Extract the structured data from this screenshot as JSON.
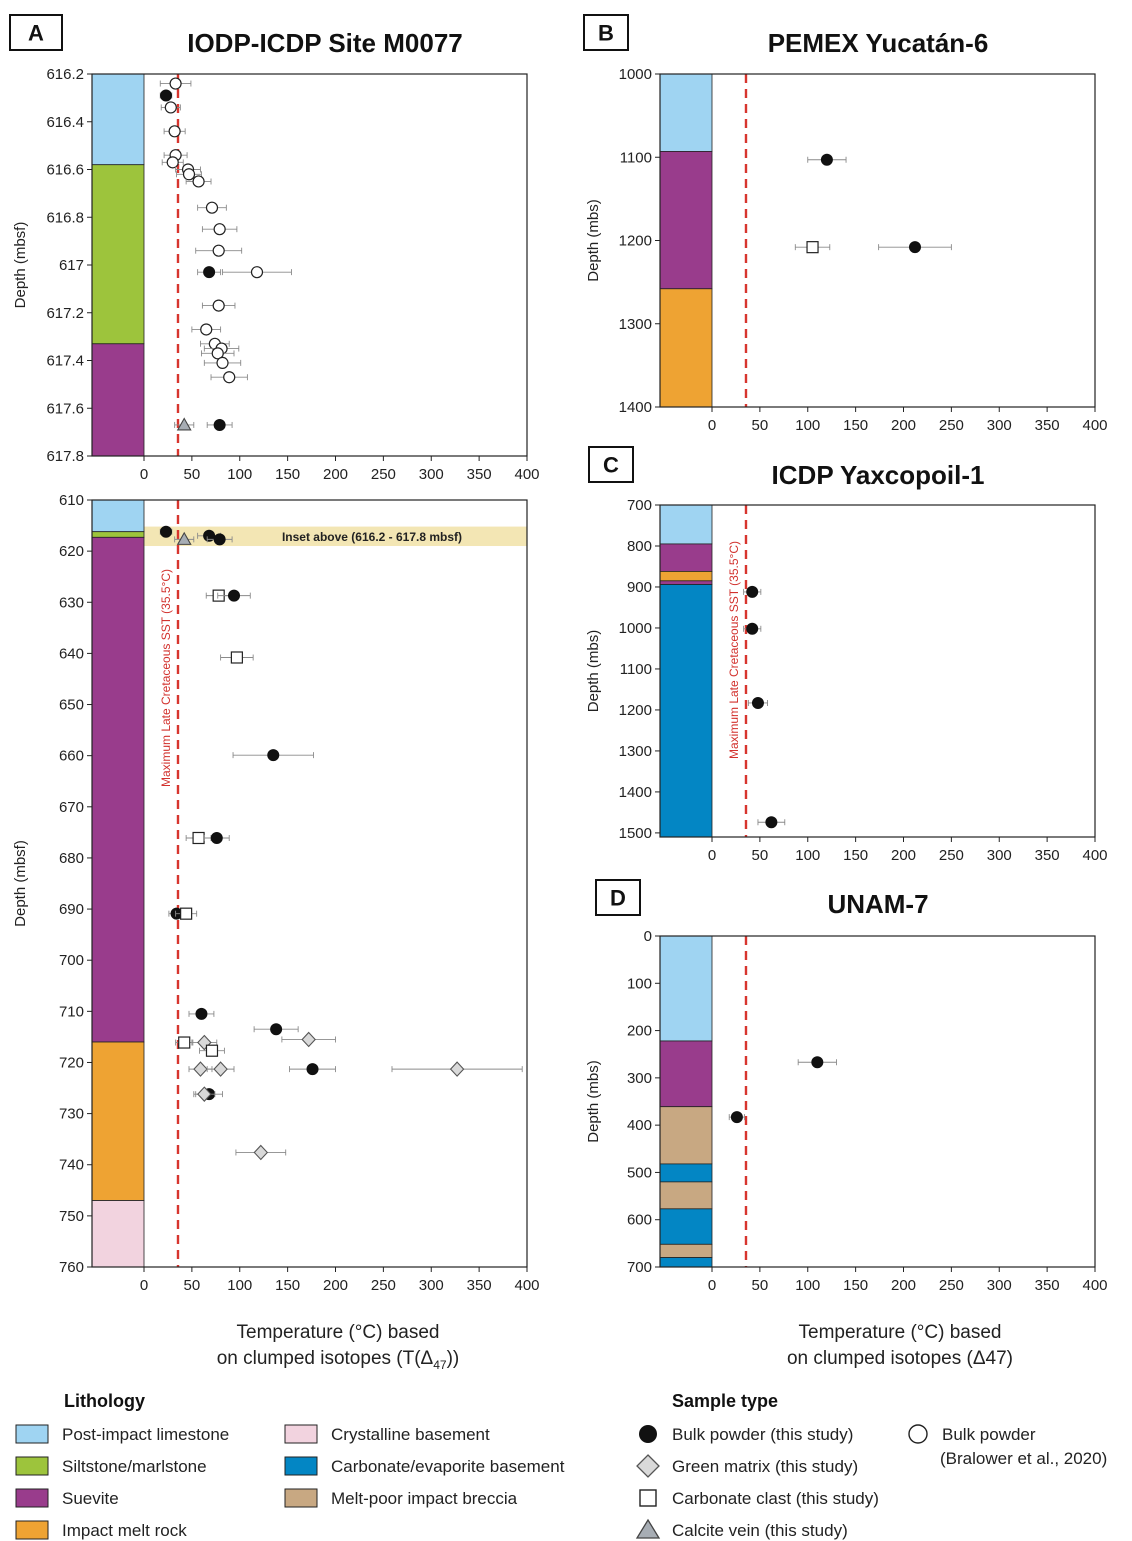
{
  "sst_label": "Maximum Late Cretaceous SST (35.5°C)",
  "sst_value": 35.5,
  "colors": {
    "post_impact_limestone": "#9fd4f2",
    "siltstone": "#9dc43c",
    "suevite": "#993c8c",
    "impact_melt": "#eea333",
    "crystalline": "#f2d3df",
    "carbonate_basement": "#0386c4",
    "melt_poor": "#c8a882",
    "sst_line": "#d7352e",
    "inset_band": "#f3e6b4"
  },
  "x_axis": {
    "label_A_line1": "Temperature (°C) based",
    "label_A_line2": "on clumped isotopes (T(Δ",
    "label_A_sub": "47",
    "label_A_end": "))",
    "label_D_line1": "Temperature (°C) based",
    "label_D_line2": "on clumped isotopes (Δ47)"
  },
  "chart_data": [
    {
      "id": "A-top",
      "type": "scatter",
      "letter": "A",
      "title": "IODP-ICDP Site M0077",
      "ylabel": "Depth (mbsf)",
      "xlim": [
        0,
        400
      ],
      "ylim": [
        617.8,
        616.2
      ],
      "xticks": [
        0,
        50,
        100,
        150,
        200,
        250,
        300,
        350,
        400
      ],
      "yticks": [
        616.2,
        616.4,
        616.6,
        616.8,
        617,
        617.2,
        617.4,
        617.6,
        617.8
      ],
      "ytick_labels": [
        "616.2",
        "616.4",
        "616.6",
        "616.8",
        "617",
        "617.2",
        "617.4",
        "617.6",
        "617.8"
      ],
      "lithology": [
        {
          "unit": "post_impact_limestone",
          "top": 616.2,
          "bottom": 616.58
        },
        {
          "unit": "siltstone",
          "top": 616.58,
          "bottom": 617.33
        },
        {
          "unit": "suevite",
          "top": 617.33,
          "bottom": 617.8
        }
      ],
      "points": [
        {
          "type": "bulk_bralower",
          "x": 33,
          "y": 616.24,
          "xerr": 16
        },
        {
          "type": "bulk",
          "x": 23,
          "y": 616.29,
          "xerr": 6
        },
        {
          "type": "bulk_bralower",
          "x": 28,
          "y": 616.34,
          "xerr": 10
        },
        {
          "type": "bulk_bralower",
          "x": 32,
          "y": 616.44,
          "xerr": 11
        },
        {
          "type": "bulk_bralower",
          "x": 33,
          "y": 616.54,
          "xerr": 12
        },
        {
          "type": "bulk_bralower",
          "x": 30,
          "y": 616.57,
          "xerr": 11
        },
        {
          "type": "bulk_bralower",
          "x": 46,
          "y": 616.6,
          "xerr": 13
        },
        {
          "type": "bulk_bralower",
          "x": 47,
          "y": 616.62,
          "xerr": 13
        },
        {
          "type": "bulk_bralower",
          "x": 57,
          "y": 616.65,
          "xerr": 13
        },
        {
          "type": "bulk_bralower",
          "x": 71,
          "y": 616.76,
          "xerr": 15
        },
        {
          "type": "bulk_bralower",
          "x": 79,
          "y": 616.85,
          "xerr": 18
        },
        {
          "type": "bulk_bralower",
          "x": 78,
          "y": 616.94,
          "xerr": 24
        },
        {
          "type": "bulk",
          "x": 68,
          "y": 617.03,
          "xerr": 12
        },
        {
          "type": "bulk_bralower",
          "x": 118,
          "y": 617.03,
          "xerr": 36
        },
        {
          "type": "bulk_bralower",
          "x": 78,
          "y": 617.17,
          "xerr": 17
        },
        {
          "type": "bulk_bralower",
          "x": 65,
          "y": 617.27,
          "xerr": 15
        },
        {
          "type": "bulk_bralower",
          "x": 74,
          "y": 617.33,
          "xerr": 15
        },
        {
          "type": "bulk_bralower",
          "x": 81,
          "y": 617.35,
          "xerr": 18
        },
        {
          "type": "bulk_bralower",
          "x": 77,
          "y": 617.37,
          "xerr": 17
        },
        {
          "type": "bulk_bralower",
          "x": 82,
          "y": 617.41,
          "xerr": 19
        },
        {
          "type": "bulk_bralower",
          "x": 89,
          "y": 617.47,
          "xerr": 19
        },
        {
          "type": "vein",
          "x": 42,
          "y": 617.67,
          "xerr": 10
        },
        {
          "type": "bulk",
          "x": 79,
          "y": 617.67,
          "xerr": 13
        }
      ]
    },
    {
      "id": "A-bottom",
      "type": "scatter",
      "letter": "",
      "title": "",
      "ylabel": "Depth (mbsf)",
      "xlim": [
        0,
        400
      ],
      "ylim": [
        760,
        610
      ],
      "xticks": [
        0,
        50,
        100,
        150,
        200,
        250,
        300,
        350,
        400
      ],
      "yticks": [
        610,
        620,
        630,
        640,
        650,
        660,
        670,
        680,
        690,
        700,
        710,
        720,
        730,
        740,
        750,
        760
      ],
      "ytick_labels": [
        "610",
        "620",
        "630",
        "640",
        "650",
        "660",
        "670",
        "680",
        "690",
        "700",
        "710",
        "720",
        "730",
        "740",
        "750",
        "760"
      ],
      "inset_band": {
        "top": 615.2,
        "bottom": 619,
        "label": "Inset above (616.2 - 617.8 mbsf)"
      },
      "show_sst_label": true,
      "lithology": [
        {
          "unit": "post_impact_limestone",
          "top": 610,
          "bottom": 616.2
        },
        {
          "unit": "siltstone",
          "top": 616.2,
          "bottom": 617.3
        },
        {
          "unit": "suevite",
          "top": 617.3,
          "bottom": 716
        },
        {
          "unit": "impact_melt",
          "top": 716,
          "bottom": 747
        },
        {
          "unit": "crystalline",
          "top": 747,
          "bottom": 760
        }
      ],
      "points": [
        {
          "type": "bulk",
          "x": 23,
          "y": 616.2,
          "xerr": 6
        },
        {
          "type": "bulk",
          "x": 68,
          "y": 617,
          "xerr": 12
        },
        {
          "type": "vein",
          "x": 42,
          "y": 617.7,
          "xerr": 10
        },
        {
          "type": "bulk",
          "x": 79,
          "y": 617.7,
          "xerr": 13
        },
        {
          "type": "clast",
          "x": 78,
          "y": 628.7,
          "xerr": 13
        },
        {
          "type": "bulk",
          "x": 94,
          "y": 628.7,
          "xerr": 17
        },
        {
          "type": "clast",
          "x": 97,
          "y": 640.8,
          "xerr": 17
        },
        {
          "type": "bulk",
          "x": 135,
          "y": 659.9,
          "xerr": 42
        },
        {
          "type": "clast",
          "x": 57,
          "y": 676.1,
          "xerr": 13
        },
        {
          "type": "bulk",
          "x": 76,
          "y": 676.1,
          "xerr": 13
        },
        {
          "type": "bulk",
          "x": 34,
          "y": 690.9,
          "xerr": 8
        },
        {
          "type": "clast",
          "x": 44,
          "y": 690.9,
          "xerr": 11
        },
        {
          "type": "bulk",
          "x": 60,
          "y": 710.5,
          "xerr": 13
        },
        {
          "type": "bulk",
          "x": 138,
          "y": 713.5,
          "xerr": 23
        },
        {
          "type": "matrix",
          "x": 172,
          "y": 715.5,
          "xerr": 28
        },
        {
          "type": "clast",
          "x": 42,
          "y": 716.1,
          "xerr": 9
        },
        {
          "type": "matrix",
          "x": 63,
          "y": 716.1,
          "xerr": 13
        },
        {
          "type": "clast",
          "x": 71,
          "y": 717.7,
          "xerr": 13
        },
        {
          "type": "matrix",
          "x": 59,
          "y": 721.3,
          "xerr": 12
        },
        {
          "type": "matrix",
          "x": 80,
          "y": 721.3,
          "xerr": 14
        },
        {
          "type": "bulk",
          "x": 176,
          "y": 721.3,
          "xerr": 24
        },
        {
          "type": "matrix",
          "x": 327,
          "y": 721.3,
          "xerr": 68
        },
        {
          "type": "bulk",
          "x": 68,
          "y": 726.2,
          "xerr": 14
        },
        {
          "type": "matrix",
          "x": 63,
          "y": 726.2,
          "xerr": 11
        },
        {
          "type": "matrix",
          "x": 122,
          "y": 737.6,
          "xerr": 26
        }
      ]
    },
    {
      "id": "B",
      "type": "scatter",
      "letter": "B",
      "title": "PEMEX Yucatán-6",
      "ylabel": "Depth (mbs)",
      "xlim": [
        -50,
        400
      ],
      "ylim": [
        1400,
        1000
      ],
      "xticks": [
        0,
        50,
        100,
        150,
        200,
        250,
        300,
        350,
        400
      ],
      "yticks": [
        1000,
        1100,
        1200,
        1300,
        1400
      ],
      "ytick_labels": [
        "1000",
        "1100",
        "1200",
        "1300",
        "1400"
      ],
      "lithology": [
        {
          "unit": "post_impact_limestone",
          "top": 1000,
          "bottom": 1093
        },
        {
          "unit": "suevite",
          "top": 1093,
          "bottom": 1258
        },
        {
          "unit": "impact_melt",
          "top": 1258,
          "bottom": 1400
        }
      ],
      "points": [
        {
          "type": "bulk",
          "x": 120,
          "y": 1103,
          "xerr": 20
        },
        {
          "type": "clast",
          "x": 105,
          "y": 1208,
          "xerr": 18
        },
        {
          "type": "bulk",
          "x": 212,
          "y": 1208,
          "xerr": 38
        }
      ]
    },
    {
      "id": "C",
      "type": "scatter",
      "letter": "C",
      "title": "ICDP Yaxcopoil-1",
      "ylabel": "Depth (mbs)",
      "xlim": [
        -50,
        400
      ],
      "ylim": [
        1510,
        700
      ],
      "xticks": [
        0,
        50,
        100,
        150,
        200,
        250,
        300,
        350,
        400
      ],
      "yticks": [
        700,
        800,
        900,
        1000,
        1100,
        1200,
        1300,
        1400,
        1500
      ],
      "ytick_labels": [
        "700",
        "800",
        "900",
        "1000",
        "1100",
        "1200",
        "1300",
        "1400",
        "1500"
      ],
      "show_sst_label": true,
      "lithology": [
        {
          "unit": "post_impact_limestone",
          "top": 700,
          "bottom": 795
        },
        {
          "unit": "suevite",
          "top": 795,
          "bottom": 862
        },
        {
          "unit": "impact_melt",
          "top": 862,
          "bottom": 885
        },
        {
          "unit": "suevite",
          "top": 885,
          "bottom": 894
        },
        {
          "unit": "carbonate_basement",
          "top": 894,
          "bottom": 1510
        }
      ],
      "points": [
        {
          "type": "bulk",
          "x": 42,
          "y": 912,
          "xerr": 9
        },
        {
          "type": "bulk",
          "x": 42,
          "y": 1002,
          "xerr": 9
        },
        {
          "type": "bulk",
          "x": 48,
          "y": 1183,
          "xerr": 10
        },
        {
          "type": "bulk",
          "x": 62,
          "y": 1474,
          "xerr": 14
        }
      ]
    },
    {
      "id": "D",
      "type": "scatter",
      "letter": "D",
      "title": "UNAM-7",
      "ylabel": "Depth (mbs)",
      "xlim": [
        -50,
        400
      ],
      "ylim": [
        700,
        0
      ],
      "xticks": [
        0,
        50,
        100,
        150,
        200,
        250,
        300,
        350,
        400
      ],
      "yticks": [
        0,
        100,
        200,
        300,
        400,
        500,
        600,
        700
      ],
      "ytick_labels": [
        "0",
        "100",
        "200",
        "300",
        "400",
        "500",
        "600",
        "700"
      ],
      "lithology": [
        {
          "unit": "post_impact_limestone",
          "top": 0,
          "bottom": 222
        },
        {
          "unit": "suevite",
          "top": 222,
          "bottom": 361
        },
        {
          "unit": "melt_poor",
          "top": 361,
          "bottom": 482
        },
        {
          "unit": "carbonate_basement",
          "top": 482,
          "bottom": 520
        },
        {
          "unit": "melt_poor",
          "top": 520,
          "bottom": 577
        },
        {
          "unit": "carbonate_basement",
          "top": 577,
          "bottom": 652
        },
        {
          "unit": "melt_poor",
          "top": 652,
          "bottom": 680
        },
        {
          "unit": "carbonate_basement",
          "top": 680,
          "bottom": 700
        }
      ],
      "points": [
        {
          "type": "bulk",
          "x": 110,
          "y": 267,
          "xerr": 20
        },
        {
          "type": "bulk",
          "x": 26,
          "y": 383,
          "xerr": 8
        }
      ]
    }
  ],
  "legend": {
    "lithology_title": "Lithology",
    "lithology_items": [
      {
        "key": "post_impact_limestone",
        "label": "Post-impact limestone"
      },
      {
        "key": "siltstone",
        "label": "Siltstone/marlstone"
      },
      {
        "key": "suevite",
        "label": "Suevite"
      },
      {
        "key": "impact_melt",
        "label": "Impact melt rock"
      },
      {
        "key": "crystalline",
        "label": "Crystalline basement"
      },
      {
        "key": "carbonate_basement",
        "label": "Carbonate/evaporite basement"
      },
      {
        "key": "melt_poor",
        "label": "Melt-poor impact breccia"
      }
    ],
    "sample_title": "Sample type",
    "sample_items": [
      {
        "key": "bulk",
        "label": "Bulk powder (this study)"
      },
      {
        "key": "matrix",
        "label": "Green matrix (this study)"
      },
      {
        "key": "clast",
        "label": "Carbonate clast (this study)"
      },
      {
        "key": "vein",
        "label": "Calcite vein (this study)"
      },
      {
        "key": "bulk_bralower",
        "label": "Bulk powder",
        "label2": "(Bralower et al., 2020)"
      }
    ]
  }
}
